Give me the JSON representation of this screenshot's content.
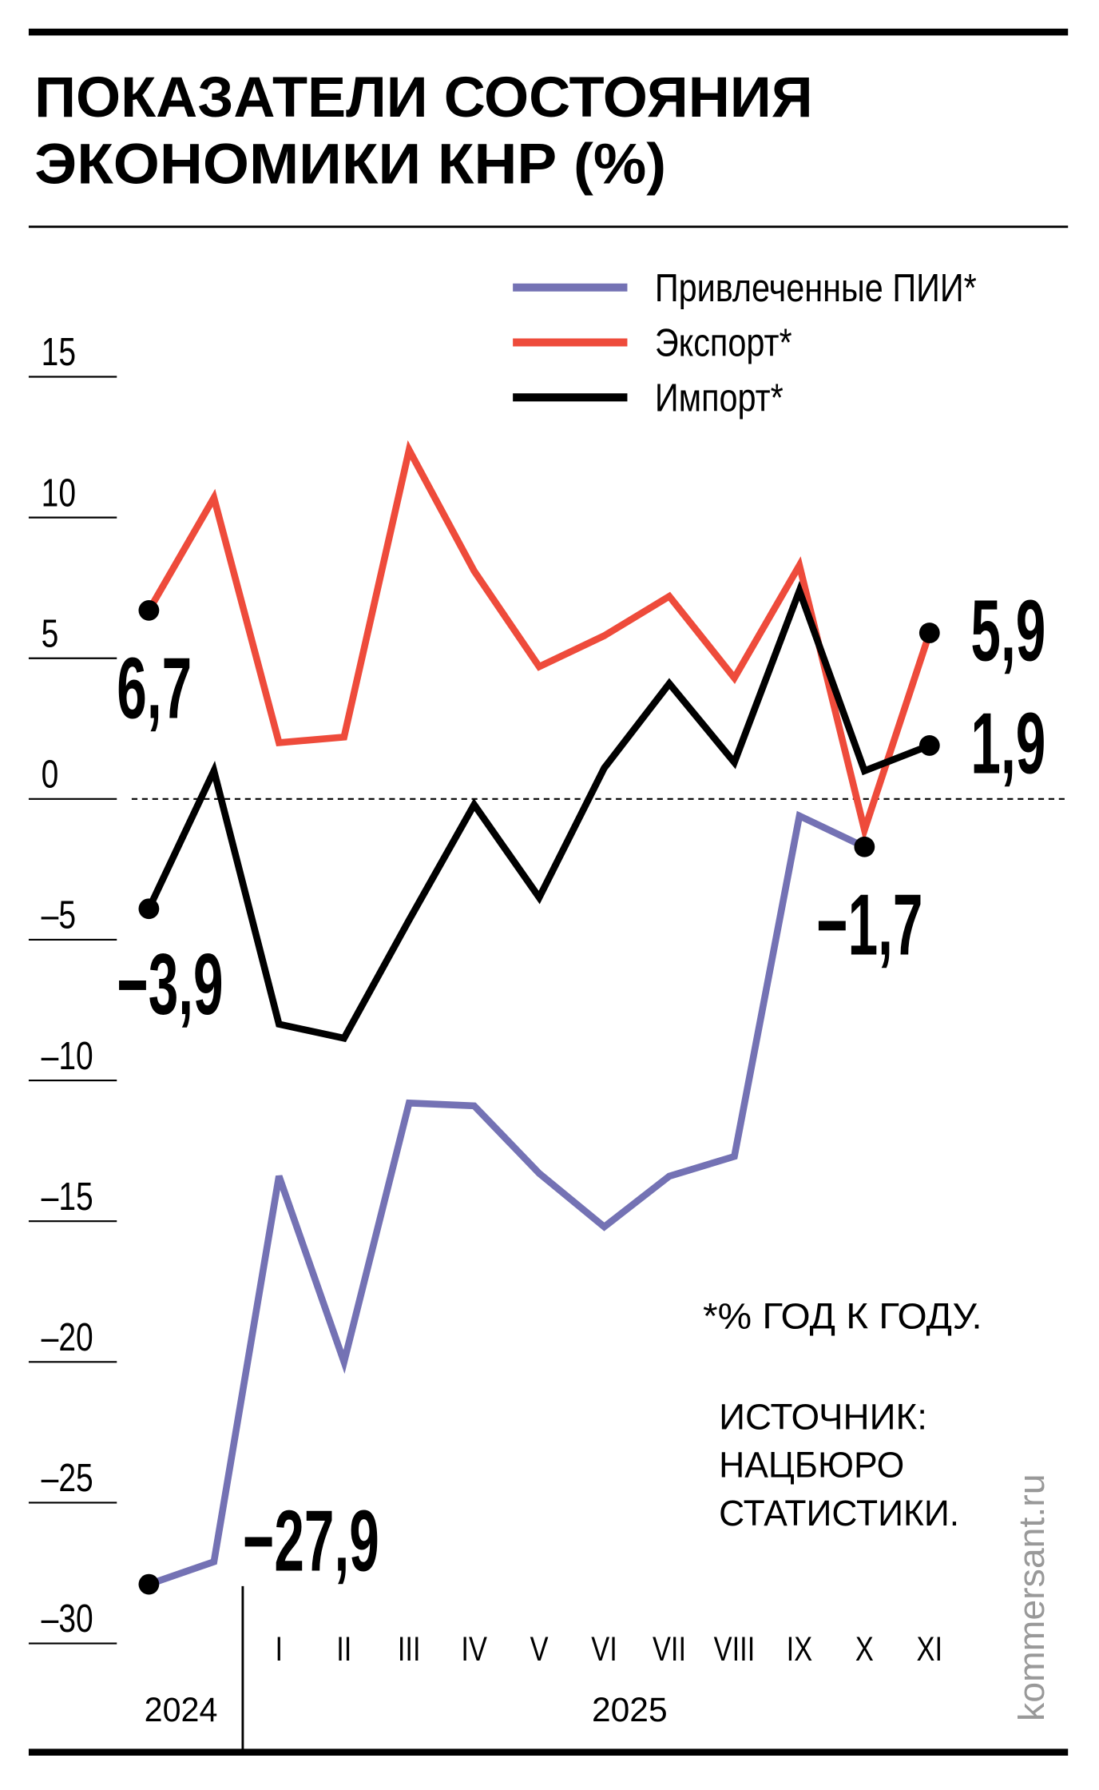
{
  "chart_data": {
    "type": "line",
    "title": [
      "ПОКАЗАТЕЛИ СОСТОЯНИЯ",
      "ЭКОНОМИКИ КНР (%)"
    ],
    "categories": [
      null,
      null,
      "I",
      "II",
      "III",
      "IV",
      "V",
      "VI",
      "VII",
      "VIII",
      "IX",
      "X",
      "XI"
    ],
    "series": [
      {
        "name": "Привлеченные ПИИ*",
        "color": "#7472b4",
        "values": [
          -27.9,
          -27.1,
          -13.4,
          -20.0,
          -10.8,
          -10.9,
          -13.3,
          -15.2,
          -13.4,
          -12.7,
          -0.6,
          -1.7,
          null
        ],
        "value_labels": [
          "−27,9",
          null,
          null,
          null,
          null,
          null,
          null,
          null,
          null,
          null,
          null,
          "−1,7",
          null
        ]
      },
      {
        "name": "Экспорт*",
        "color": "#ee4b3b",
        "values": [
          6.7,
          10.7,
          2.0,
          2.2,
          12.4,
          8.1,
          4.7,
          5.8,
          7.2,
          4.3,
          8.3,
          -1.1,
          5.9
        ],
        "value_labels": [
          "6,7",
          null,
          null,
          null,
          null,
          null,
          null,
          null,
          null,
          null,
          null,
          null,
          "5,9"
        ]
      },
      {
        "name": "Импорт*",
        "color": "#000000",
        "values": [
          -3.9,
          1.0,
          -8.0,
          -8.5,
          -4.3,
          -0.2,
          -3.5,
          1.1,
          4.1,
          1.3,
          7.4,
          1.0,
          1.9
        ],
        "value_labels": [
          "−3,9",
          null,
          null,
          null,
          null,
          null,
          null,
          null,
          null,
          null,
          null,
          null,
          "1,9"
        ]
      }
    ],
    "ylim": [
      -30,
      15
    ],
    "yticks": [
      {
        "value": -30,
        "label": "–30"
      },
      {
        "value": -25,
        "label": "–25"
      },
      {
        "value": -20,
        "label": "–20"
      },
      {
        "value": -15,
        "label": "–15"
      },
      {
        "value": -10,
        "label": "–10"
      },
      {
        "value": -5,
        "label": "–5"
      },
      0,
      5,
      10,
      15
    ],
    "years": [
      "2024",
      "2025"
    ],
    "note": "*% ГОД К ГОДУ.",
    "source": [
      "ИСТОЧНИК:",
      "НАЦБЮРО",
      "СТАТИСТИКИ."
    ],
    "credit": "kommersant.ru"
  }
}
